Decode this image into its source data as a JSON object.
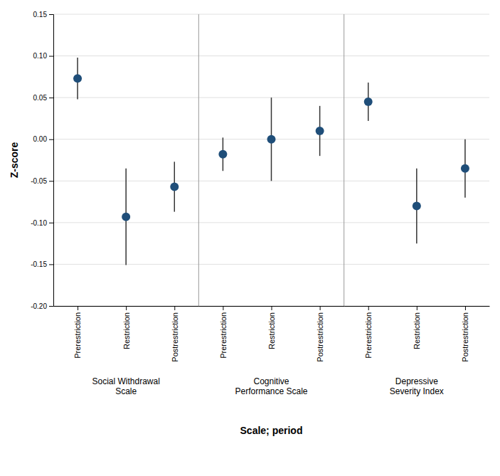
{
  "chart_data": {
    "type": "dot",
    "xlabel": "Scale; period",
    "ylabel": "Z-score",
    "ylim": [
      -0.2,
      0.15
    ],
    "yticks": [
      {
        "value": -0.2,
        "label": "-0.20"
      },
      {
        "value": -0.15,
        "label": "-0.15"
      },
      {
        "value": -0.1,
        "label": "-0.10"
      },
      {
        "value": -0.05,
        "label": "-0.05"
      },
      {
        "value": 0,
        "label": "0.00"
      },
      {
        "value": 0.05,
        "label": "0.05"
      },
      {
        "value": 0.1,
        "label": "0.10"
      },
      {
        "value": 0.15,
        "label": "0.15"
      }
    ],
    "grid": true,
    "color": "#1f4e79",
    "groups": [
      {
        "label": "Social Withdrawal\nScale",
        "categories": [
          "Prerestriction",
          "Restriction",
          "Postrestriction"
        ],
        "values": [
          0.073,
          -0.093,
          -0.057
        ],
        "error_low": [
          0.025,
          0.058,
          0.03
        ],
        "error_high": [
          0.025,
          0.058,
          0.03
        ]
      },
      {
        "label": "Cognitive\nPerformance Scale",
        "categories": [
          "Prerestriction",
          "Restriction",
          "Postrestriction"
        ],
        "values": [
          -0.018,
          0.0,
          0.01
        ],
        "error_low": [
          0.02,
          0.05,
          0.03
        ],
        "error_high": [
          0.02,
          0.05,
          0.03
        ]
      },
      {
        "label": "Depressive\nSeverity Index",
        "categories": [
          "Prerestriction",
          "Restriction",
          "Postrestriction"
        ],
        "values": [
          0.045,
          -0.08,
          -0.035
        ],
        "error_low": [
          0.023,
          0.045,
          0.035
        ],
        "error_high": [
          0.023,
          0.045,
          0.035
        ]
      }
    ]
  }
}
